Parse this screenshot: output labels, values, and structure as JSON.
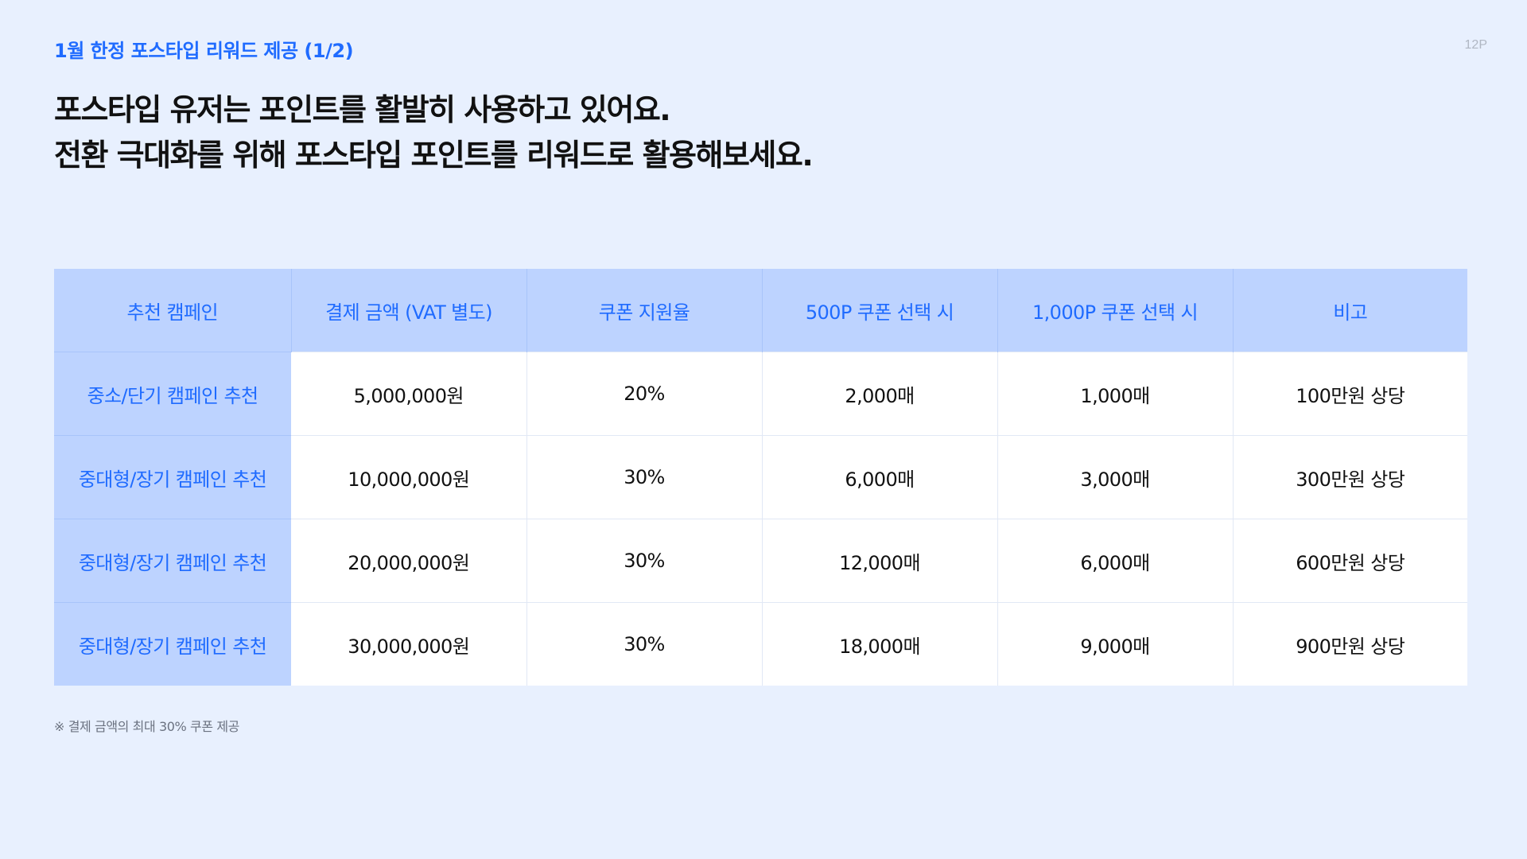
{
  "header": {
    "section_label": "1월 한정 포스타입 리워드 제공 (1/2)",
    "page_number": "12P"
  },
  "headline": {
    "line1": "포스타입 유저는 포인트를 활발히 사용하고 있어요.",
    "line2": "전환 극대화를 위해 포스타입 포인트를 리워드로 활용해보세요."
  },
  "table": {
    "columns": [
      "추천 캠페인",
      "결제 금액 (VAT 별도)",
      "쿠폰 지원율",
      "500P 쿠폰 선택 시",
      "1,000P 쿠폰 선택 시",
      "비고"
    ],
    "rows": [
      {
        "campaign": "중소/단기 캠페인 추천",
        "amount": "5,000,000원",
        "rate": "20%",
        "coupon_500": "2,000매",
        "coupon_1000": "1,000매",
        "note": "100만원 상당"
      },
      {
        "campaign": "중대형/장기 캠페인 추천",
        "amount": "10,000,000원",
        "rate": "30%",
        "coupon_500": "6,000매",
        "coupon_1000": "3,000매",
        "note": "300만원 상당"
      },
      {
        "campaign": "중대형/장기 캠페인 추천",
        "amount": "20,000,000원",
        "rate": "30%",
        "coupon_500": "12,000매",
        "coupon_1000": "6,000매",
        "note": "600만원 상당"
      },
      {
        "campaign": "중대형/장기 캠페인 추천",
        "amount": "30,000,000원",
        "rate": "30%",
        "coupon_500": "18,000매",
        "coupon_1000": "9,000매",
        "note": "900만원 상당"
      }
    ]
  },
  "footnote": "※ 결제 금액의 최대 30% 쿠폰 제공",
  "colors": {
    "background": "#E8F0FE",
    "accent": "#1F6BFF",
    "header_fill": "#BDD3FF",
    "cell_fill": "#FFFFFF",
    "text": "#111111",
    "muted": "#6B7280"
  }
}
